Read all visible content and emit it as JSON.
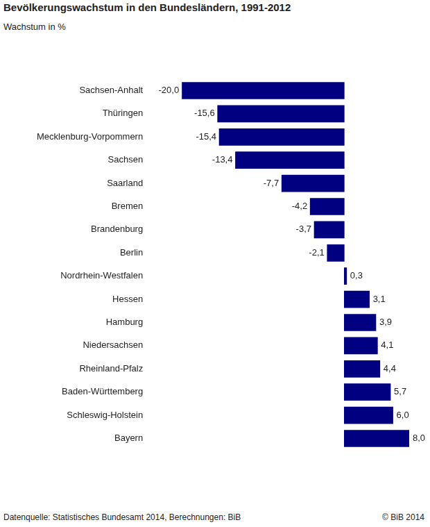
{
  "chart_data": {
    "type": "bar",
    "title": "Bevölkerungswachstum in den Bundesländern, 1991-2012",
    "subtitle": "Wachstum in %",
    "source": "Datenquelle: Statistisches Bundesamt 2014, Berechnungen: BiB",
    "copyright": "© BiB 2014",
    "orientation": "horizontal",
    "categories": [
      "Sachsen-Anhalt",
      "Thüringen",
      "Mecklenburg-Vorpommern",
      "Sachsen",
      "Saarland",
      "Bremen",
      "Brandenburg",
      "Berlin",
      "Nordrhein-Westfalen",
      "Hessen",
      "Hamburg",
      "Niedersachsen",
      "Rheinland-Pfalz",
      "Baden-Württemberg",
      "Schleswig-Holstein",
      "Bayern"
    ],
    "values": [
      -20.0,
      -15.6,
      -15.4,
      -13.4,
      -7.7,
      -4.2,
      -3.7,
      -2.1,
      0.3,
      3.1,
      3.9,
      4.1,
      4.4,
      5.7,
      6.0,
      8.0
    ],
    "value_labels": [
      "-20,0",
      "-15,6",
      "-15,4",
      "-13,4",
      "-7,7",
      "-4,2",
      "-3,7",
      "-2,1",
      "0,3",
      "3,1",
      "3,9",
      "4,1",
      "4,4",
      "5,7",
      "6,0",
      "8,0"
    ],
    "color": "#000080",
    "xlim": [
      -20,
      8
    ],
    "grid": false,
    "data_labels": true,
    "tick_labels": "y"
  }
}
